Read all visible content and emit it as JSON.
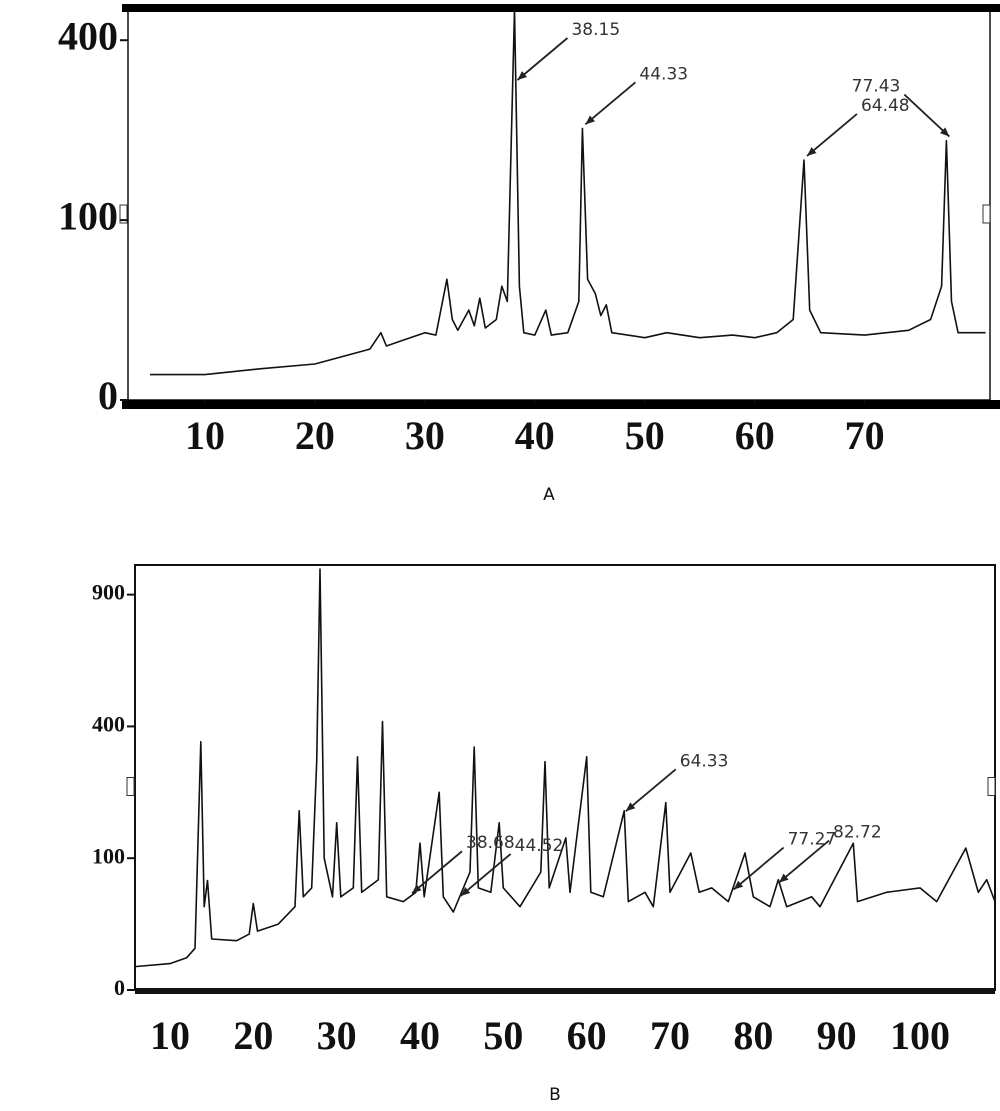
{
  "chart_data": [
    {
      "type": "line",
      "caption": "A",
      "yscale": "sqrt",
      "color": "#111111",
      "xlim": [
        3,
        81.4
      ],
      "ylim": [
        0,
        470
      ],
      "xticks": [
        10,
        20,
        30,
        40,
        50,
        60,
        70
      ],
      "yticks": [
        0,
        100,
        400
      ],
      "x": [
        5,
        10,
        15,
        20,
        25,
        26,
        26.5,
        28,
        30,
        31,
        32,
        32.5,
        33,
        34,
        34.5,
        35,
        35.5,
        36.5,
        37,
        37.5,
        38.15,
        38.6,
        39,
        40,
        41,
        41.5,
        43,
        44,
        44.33,
        44.8,
        45.5,
        46,
        46.5,
        47,
        50,
        52,
        55,
        58,
        60,
        62,
        63.5,
        64.48,
        65,
        66,
        70,
        74,
        76,
        77,
        77.43,
        77.9,
        78.5,
        81
      ],
      "values": [
        2,
        2,
        3,
        4,
        8,
        14,
        9,
        11,
        14,
        13,
        45,
        20,
        15,
        25,
        17,
        32,
        16,
        20,
        40,
        30,
        470,
        40,
        14,
        13,
        25,
        13,
        14,
        30,
        228,
        45,
        35,
        22,
        28,
        14,
        12,
        14,
        12,
        13,
        12,
        14,
        20,
        178,
        25,
        14,
        13,
        15,
        20,
        40,
        208,
        30,
        14,
        14
      ],
      "annotations": [
        38.15,
        44.33,
        64.48,
        77.43
      ]
    },
    {
      "type": "line",
      "caption": "B",
      "yscale": "sqrt",
      "color": "#111111",
      "xlim": [
        5.8,
        109
      ],
      "ylim": [
        0,
        1040
      ],
      "xticks": [
        10,
        20,
        30,
        40,
        50,
        60,
        70,
        80,
        90,
        100
      ],
      "yticks": [
        0,
        100,
        400,
        900
      ],
      "x": [
        5,
        10,
        12,
        13,
        13.7,
        14.1,
        14.5,
        15,
        18,
        19.5,
        20,
        20.5,
        23,
        25,
        25.5,
        26,
        27,
        27.6,
        28,
        28.5,
        29.5,
        30,
        30.5,
        32,
        32.5,
        33,
        35,
        35.5,
        36,
        38,
        39.5,
        40,
        40.5,
        42.3,
        42.8,
        44,
        46,
        46.5,
        47,
        48.5,
        49.5,
        50,
        52,
        54.5,
        55,
        55.5,
        57.5,
        58,
        60,
        60.5,
        62,
        64.5,
        65,
        67,
        68,
        69.5,
        70,
        72.5,
        73.5,
        75,
        77,
        79,
        80,
        82,
        83,
        84,
        87,
        88,
        92,
        92.5,
        96,
        100,
        102,
        105.5,
        107,
        108,
        109
      ],
      "values": [
        3,
        4,
        6,
        10,
        355,
        40,
        69,
        15,
        14,
        18,
        43,
        20,
        25,
        40,
        185,
        50,
        60,
        300,
        1020,
        100,
        50,
        161,
        50,
        60,
        313,
        55,
        70,
        415,
        50,
        45,
        55,
        124,
        50,
        225,
        50,
        35,
        80,
        340,
        60,
        55,
        161,
        60,
        40,
        80,
        300,
        60,
        133,
        55,
        313,
        55,
        50,
        185,
        45,
        55,
        40,
        202,
        55,
        108,
        55,
        60,
        45,
        108,
        50,
        40,
        70,
        40,
        50,
        40,
        124,
        45,
        55,
        60,
        45,
        116,
        55,
        70,
        45
      ],
      "annotations": [
        38.68,
        44.52,
        64.33,
        77.27,
        82.72
      ]
    }
  ]
}
